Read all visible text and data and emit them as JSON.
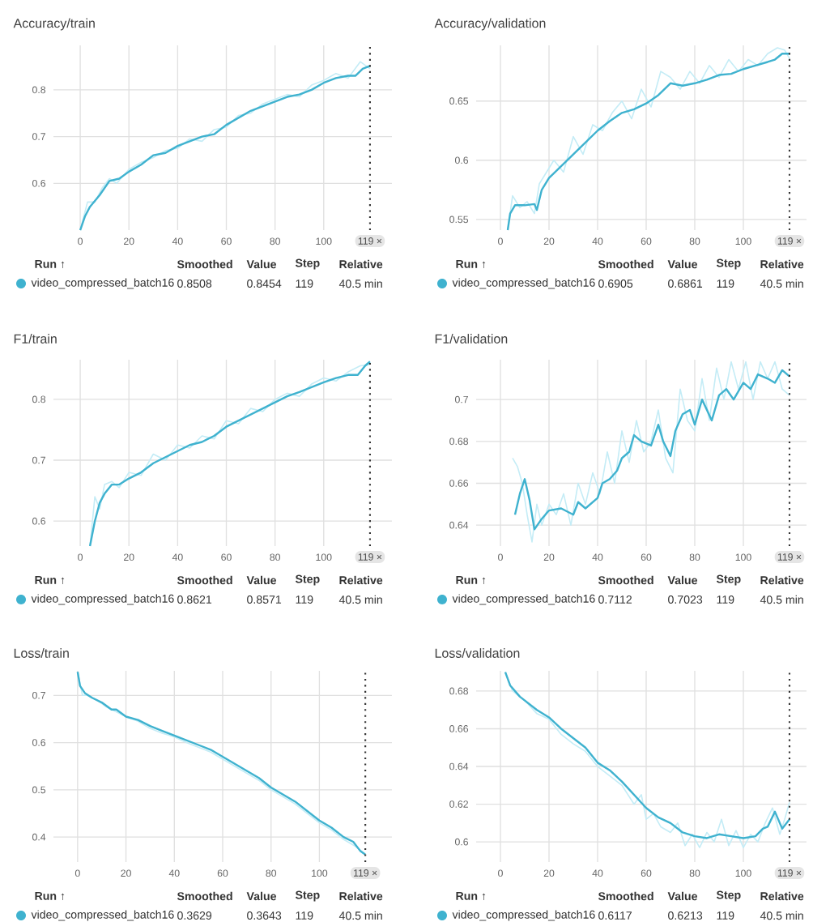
{
  "chart_data": [
    {
      "type": "line",
      "title": "Accuracy/train",
      "xlim": [
        -11,
        128
      ],
      "ylim": [
        0.5,
        0.895
      ],
      "xticks": [
        0,
        20,
        40,
        60,
        80,
        100
      ],
      "yticks": [
        0.6,
        0.7,
        0.8
      ],
      "grid": true,
      "legend": "bottom",
      "series": [
        {
          "color": "#c4ecf6",
          "x": [
            0,
            3,
            6,
            9,
            12,
            15,
            20,
            25,
            30,
            35,
            40,
            45,
            50,
            55,
            60,
            65,
            70,
            75,
            80,
            85,
            90,
            95,
            100,
            105,
            110,
            115,
            119
          ],
          "values": [
            0.5,
            0.56,
            0.56,
            0.59,
            0.61,
            0.6,
            0.63,
            0.645,
            0.655,
            0.67,
            0.675,
            0.695,
            0.69,
            0.715,
            0.72,
            0.745,
            0.75,
            0.77,
            0.78,
            0.79,
            0.785,
            0.81,
            0.82,
            0.835,
            0.825,
            0.86,
            0.845
          ]
        },
        {
          "name": "video_compressed_batch16",
          "color": "#3fb2cf",
          "x": [
            0,
            2,
            4,
            8,
            12,
            16,
            20,
            25,
            30,
            35,
            40,
            45,
            50,
            55,
            60,
            65,
            70,
            75,
            80,
            85,
            90,
            95,
            100,
            105,
            110,
            113,
            116,
            119
          ],
          "values": [
            0.5,
            0.53,
            0.55,
            0.575,
            0.605,
            0.61,
            0.625,
            0.64,
            0.66,
            0.665,
            0.68,
            0.69,
            0.7,
            0.705,
            0.725,
            0.74,
            0.755,
            0.765,
            0.775,
            0.785,
            0.79,
            0.8,
            0.815,
            0.825,
            0.83,
            0.83,
            0.845,
            0.851
          ]
        }
      ],
      "ref_lines": [
        {
          "axis": "x",
          "value": 119,
          "label": "119 ×",
          "line_style": "dotted"
        }
      ],
      "annotations": [
        "Run ↑",
        "Smoothed",
        "Value",
        "Step",
        "Relative",
        "0.8508",
        "0.8454",
        "119",
        "40.5 min"
      ]
    },
    {
      "type": "line",
      "title": "Accuracy/validation",
      "xlim": [
        -10,
        126
      ],
      "ylim": [
        0.541,
        0.697
      ],
      "xticks": [
        0,
        20,
        40,
        60,
        80,
        100
      ],
      "yticks": [
        0.55,
        0.6,
        0.65
      ],
      "grid": true,
      "legend": "bottom",
      "series": [
        {
          "color": "#c4ecf6",
          "x": [
            3,
            5,
            8,
            11,
            14,
            16,
            19,
            22,
            26,
            30,
            34,
            38,
            42,
            46,
            50,
            54,
            58,
            62,
            66,
            70,
            74,
            78,
            82,
            86,
            90,
            94,
            98,
            102,
            106,
            110,
            114,
            117,
            119
          ],
          "values": [
            0.541,
            0.57,
            0.56,
            0.565,
            0.555,
            0.58,
            0.59,
            0.6,
            0.59,
            0.62,
            0.605,
            0.63,
            0.625,
            0.64,
            0.65,
            0.635,
            0.66,
            0.645,
            0.675,
            0.67,
            0.66,
            0.675,
            0.665,
            0.68,
            0.67,
            0.685,
            0.675,
            0.685,
            0.68,
            0.69,
            0.695,
            0.693,
            0.686
          ]
        },
        {
          "name": "video_compressed_batch16",
          "color": "#3fb2cf",
          "x": [
            3,
            4,
            6,
            10,
            14,
            15,
            17,
            20,
            25,
            30,
            35,
            40,
            45,
            50,
            55,
            60,
            65,
            70,
            75,
            80,
            85,
            90,
            95,
            100,
            105,
            110,
            113,
            116,
            119
          ],
          "values": [
            0.541,
            0.555,
            0.562,
            0.562,
            0.563,
            0.558,
            0.575,
            0.585,
            0.595,
            0.605,
            0.615,
            0.625,
            0.633,
            0.64,
            0.643,
            0.648,
            0.655,
            0.665,
            0.663,
            0.665,
            0.668,
            0.672,
            0.673,
            0.677,
            0.68,
            0.683,
            0.685,
            0.69,
            0.69
          ]
        }
      ],
      "ref_lines": [
        {
          "axis": "x",
          "value": 119,
          "label": "119 ×",
          "line_style": "dotted"
        }
      ],
      "annotations": [
        "Run ↑",
        "Smoothed",
        "Value",
        "Step",
        "Relative",
        "0.6905",
        "0.6861",
        "119",
        "40.5 min"
      ]
    },
    {
      "type": "line",
      "title": "F1/train",
      "xlim": [
        -11,
        128
      ],
      "ylim": [
        0.559,
        0.865
      ],
      "xticks": [
        0,
        20,
        40,
        60,
        80,
        100
      ],
      "yticks": [
        0.6,
        0.7,
        0.8
      ],
      "grid": true,
      "legend": "bottom",
      "series": [
        {
          "color": "#c4ecf6",
          "x": [
            4,
            6,
            8,
            10,
            13,
            16,
            20,
            25,
            30,
            35,
            40,
            45,
            50,
            55,
            60,
            65,
            70,
            75,
            80,
            85,
            90,
            95,
            100,
            105,
            110,
            115,
            119
          ],
          "values": [
            0.559,
            0.64,
            0.62,
            0.66,
            0.665,
            0.655,
            0.68,
            0.675,
            0.71,
            0.7,
            0.725,
            0.72,
            0.74,
            0.735,
            0.765,
            0.76,
            0.785,
            0.78,
            0.8,
            0.81,
            0.805,
            0.825,
            0.835,
            0.83,
            0.845,
            0.855,
            0.857
          ]
        },
        {
          "name": "video_compressed_batch16",
          "color": "#3fb2cf",
          "x": [
            4,
            6,
            8,
            10,
            13,
            16,
            20,
            25,
            30,
            35,
            40,
            45,
            50,
            55,
            60,
            65,
            70,
            75,
            80,
            85,
            90,
            95,
            100,
            105,
            110,
            114,
            117,
            119
          ],
          "values": [
            0.559,
            0.6,
            0.63,
            0.645,
            0.66,
            0.66,
            0.67,
            0.68,
            0.695,
            0.705,
            0.715,
            0.725,
            0.73,
            0.74,
            0.755,
            0.765,
            0.775,
            0.785,
            0.795,
            0.805,
            0.812,
            0.82,
            0.828,
            0.835,
            0.84,
            0.84,
            0.855,
            0.862
          ]
        }
      ],
      "ref_lines": [
        {
          "axis": "x",
          "value": 119,
          "label": "119 ×",
          "line_style": "dotted"
        }
      ],
      "annotations": [
        "Run ↑",
        "Smoothed",
        "Value",
        "Step",
        "Relative",
        "0.8621",
        "0.8571",
        "119",
        "40.5 min"
      ]
    },
    {
      "type": "line",
      "title": "F1/validation",
      "xlim": [
        -10,
        126
      ],
      "ylim": [
        0.63,
        0.719
      ],
      "xticks": [
        0,
        20,
        40,
        60,
        80,
        100
      ],
      "yticks": [
        0.64,
        0.66,
        0.68,
        0.7
      ],
      "grid": true,
      "legend": "bottom",
      "series": [
        {
          "color": "#c4ecf6",
          "x": [
            5,
            7,
            9,
            11,
            13,
            15,
            17,
            20,
            23,
            26,
            29,
            32,
            35,
            38,
            41,
            44,
            47,
            50,
            53,
            56,
            59,
            62,
            65,
            68,
            71,
            74,
            77,
            80,
            83,
            86,
            89,
            92,
            95,
            98,
            101,
            104,
            107,
            110,
            113,
            116,
            119
          ],
          "values": [
            0.672,
            0.668,
            0.66,
            0.645,
            0.632,
            0.65,
            0.64,
            0.65,
            0.645,
            0.655,
            0.64,
            0.66,
            0.65,
            0.665,
            0.655,
            0.675,
            0.66,
            0.685,
            0.67,
            0.69,
            0.675,
            0.68,
            0.695,
            0.672,
            0.665,
            0.705,
            0.69,
            0.685,
            0.71,
            0.69,
            0.715,
            0.7,
            0.718,
            0.705,
            0.718,
            0.7,
            0.718,
            0.71,
            0.718,
            0.705,
            0.702
          ]
        },
        {
          "name": "video_compressed_batch16",
          "color": "#3fb2cf",
          "x": [
            6,
            8,
            10,
            12,
            14,
            17,
            20,
            25,
            30,
            32,
            35,
            40,
            42,
            45,
            48,
            50,
            53,
            55,
            58,
            62,
            65,
            67,
            70,
            72,
            75,
            78,
            80,
            83,
            87,
            90,
            93,
            96,
            100,
            103,
            106,
            110,
            113,
            116,
            119
          ],
          "values": [
            0.645,
            0.655,
            0.662,
            0.652,
            0.638,
            0.643,
            0.647,
            0.648,
            0.645,
            0.651,
            0.648,
            0.653,
            0.66,
            0.662,
            0.666,
            0.672,
            0.675,
            0.683,
            0.68,
            0.678,
            0.688,
            0.68,
            0.673,
            0.685,
            0.693,
            0.695,
            0.688,
            0.7,
            0.69,
            0.702,
            0.705,
            0.7,
            0.708,
            0.705,
            0.712,
            0.71,
            0.708,
            0.714,
            0.711
          ]
        }
      ],
      "ref_lines": [
        {
          "axis": "x",
          "value": 119,
          "label": "119 ×",
          "line_style": "dotted"
        }
      ],
      "annotations": [
        "Run ↑",
        "Smoothed",
        "Value",
        "Step",
        "Relative",
        "0.7112",
        "0.7023",
        "119",
        "40.5 min"
      ]
    },
    {
      "type": "line",
      "title": "Loss/train",
      "xlim": [
        -10,
        130
      ],
      "ylim": [
        0.347,
        0.752
      ],
      "xticks": [
        0,
        20,
        40,
        60,
        80,
        100
      ],
      "yticks": [
        0.4,
        0.5,
        0.6,
        0.7
      ],
      "grid": true,
      "legend": "bottom",
      "series": [
        {
          "color": "#c4ecf6",
          "x": [
            0,
            2,
            4,
            8,
            12,
            16,
            20,
            25,
            30,
            35,
            40,
            45,
            50,
            55,
            60,
            65,
            70,
            75,
            80,
            85,
            90,
            95,
            100,
            105,
            110,
            115,
            119
          ],
          "values": [
            0.75,
            0.7,
            0.7,
            0.69,
            0.675,
            0.665,
            0.655,
            0.645,
            0.63,
            0.62,
            0.612,
            0.6,
            0.59,
            0.58,
            0.565,
            0.55,
            0.535,
            0.52,
            0.5,
            0.485,
            0.47,
            0.45,
            0.43,
            0.415,
            0.395,
            0.38,
            0.364
          ]
        },
        {
          "name": "video_compressed_batch16",
          "color": "#3fb2cf",
          "x": [
            0,
            1,
            3,
            6,
            10,
            14,
            16,
            20,
            25,
            30,
            35,
            40,
            45,
            50,
            55,
            60,
            65,
            70,
            75,
            80,
            85,
            90,
            95,
            100,
            105,
            110,
            114,
            117,
            119
          ],
          "values": [
            0.75,
            0.72,
            0.705,
            0.695,
            0.685,
            0.67,
            0.67,
            0.655,
            0.648,
            0.635,
            0.625,
            0.615,
            0.605,
            0.595,
            0.585,
            0.57,
            0.555,
            0.54,
            0.525,
            0.505,
            0.49,
            0.475,
            0.455,
            0.435,
            0.42,
            0.4,
            0.39,
            0.37,
            0.363
          ]
        }
      ],
      "ref_lines": [
        {
          "axis": "x",
          "value": 119,
          "label": "119 ×",
          "line_style": "dotted"
        }
      ],
      "annotations": [
        "Run ↑",
        "Smoothed",
        "Value",
        "Step",
        "Relative",
        "0.3629",
        "0.3643",
        "119",
        "40.5 min"
      ]
    },
    {
      "type": "line",
      "title": "Loss/validation",
      "xlim": [
        -10,
        126
      ],
      "ylim": [
        0.5893,
        0.6907
      ],
      "xticks": [
        0,
        20,
        40,
        60,
        80,
        100
      ],
      "yticks": [
        0.6,
        0.62,
        0.64,
        0.66,
        0.68
      ],
      "grid": true,
      "legend": "bottom",
      "series": [
        {
          "color": "#c4ecf6",
          "x": [
            2,
            5,
            10,
            15,
            20,
            25,
            30,
            35,
            40,
            45,
            50,
            55,
            58,
            60,
            63,
            66,
            70,
            73,
            76,
            79,
            82,
            85,
            88,
            91,
            94,
            97,
            100,
            103,
            106,
            109,
            112,
            115,
            117,
            119
          ],
          "values": [
            0.69,
            0.68,
            0.675,
            0.668,
            0.665,
            0.657,
            0.652,
            0.648,
            0.64,
            0.635,
            0.63,
            0.62,
            0.625,
            0.612,
            0.615,
            0.608,
            0.605,
            0.61,
            0.598,
            0.604,
            0.597,
            0.605,
            0.6,
            0.612,
            0.598,
            0.606,
            0.597,
            0.604,
            0.6,
            0.61,
            0.618,
            0.604,
            0.612,
            0.621
          ]
        },
        {
          "name": "video_compressed_batch16",
          "color": "#3fb2cf",
          "x": [
            2,
            4,
            8,
            15,
            20,
            25,
            30,
            35,
            40,
            45,
            50,
            55,
            60,
            65,
            70,
            75,
            80,
            85,
            90,
            95,
            100,
            105,
            108,
            110,
            113,
            116,
            119
          ],
          "values": [
            0.69,
            0.683,
            0.677,
            0.67,
            0.666,
            0.66,
            0.655,
            0.65,
            0.642,
            0.638,
            0.632,
            0.625,
            0.618,
            0.613,
            0.61,
            0.605,
            0.603,
            0.602,
            0.604,
            0.603,
            0.602,
            0.603,
            0.607,
            0.608,
            0.616,
            0.607,
            0.612
          ]
        }
      ],
      "ref_lines": [
        {
          "axis": "x",
          "value": 119,
          "label": "119 ×",
          "line_style": "dotted"
        }
      ],
      "annotations": [
        "Run ↑",
        "Smoothed",
        "Value",
        "Step",
        "Relative",
        "0.6117",
        "0.6213",
        "119",
        "40.5 min"
      ]
    }
  ]
}
